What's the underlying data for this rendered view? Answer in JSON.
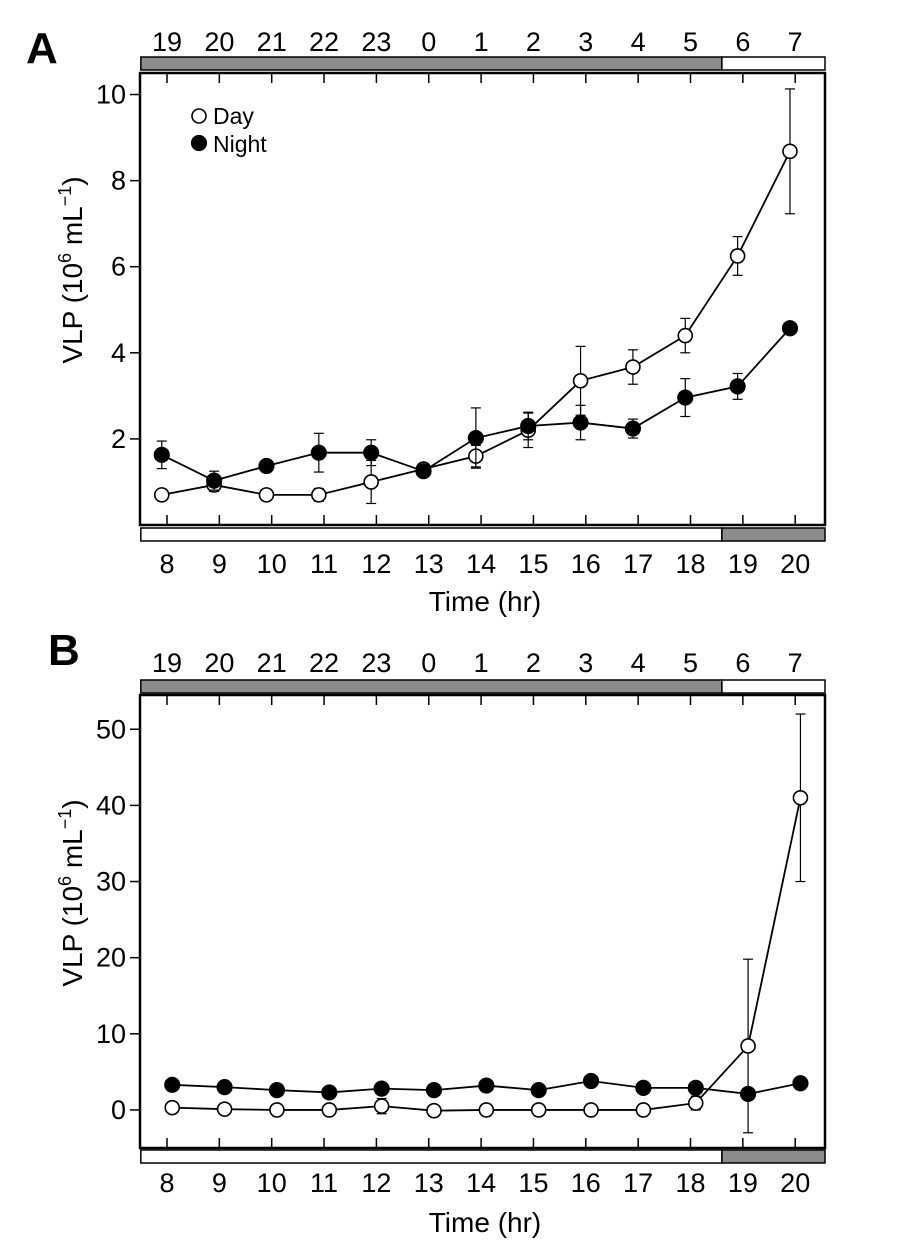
{
  "chart_data": [
    {
      "type": "line",
      "panel_label": "A",
      "xlabel": "Time (hr)",
      "ylabel_main": "VLP (10",
      "ylabel_sup1": "6",
      "ylabel_mid": " mL",
      "ylabel_sup2": "−1",
      "ylabel_end": ")",
      "x_ticks": [
        "8",
        "9",
        "10",
        "11",
        "12",
        "13",
        "14",
        "15",
        "16",
        "17",
        "18",
        "19",
        "20"
      ],
      "top_ticks": [
        "19",
        "20",
        "21",
        "22",
        "23",
        "0",
        "1",
        "2",
        "3",
        "4",
        "5",
        "6",
        "7"
      ],
      "y_ticks": [
        "2",
        "4",
        "6",
        "8",
        "10"
      ],
      "y_tick_values": [
        2,
        4,
        6,
        8,
        10
      ],
      "ylim": [
        0,
        10.5
      ],
      "xlim": [
        7.5,
        20.7
      ],
      "top_bar": [
        {
          "from": 7.5,
          "to": 18.6,
          "color": "#8c8c8c"
        },
        {
          "from": 18.6,
          "to": 20.7,
          "color": "#ffffff"
        }
      ],
      "bottom_bar": [
        {
          "from": 7.5,
          "to": 18.6,
          "color": "#ffffff"
        },
        {
          "from": 18.6,
          "to": 20.7,
          "color": "#8c8c8c"
        }
      ],
      "legend": {
        "position": "top-left",
        "day_label": "Day",
        "night_label": "Night"
      },
      "series": [
        {
          "name": "Day",
          "marker": "open-circle",
          "x": [
            7.9,
            8.9,
            9.9,
            10.9,
            11.9,
            12.9,
            13.9,
            14.9,
            15.9,
            16.9,
            17.9,
            18.9,
            19.9
          ],
          "y": [
            0.7,
            0.93,
            0.7,
            0.7,
            1.0,
            1.3,
            1.6,
            2.2,
            3.35,
            3.67,
            4.4,
            6.25,
            8.68
          ],
          "err": [
            0.12,
            0.15,
            0.06,
            0.15,
            0.5,
            0.1,
            0.25,
            0.4,
            0.8,
            0.4,
            0.4,
            0.45,
            1.45
          ]
        },
        {
          "name": "Night",
          "marker": "filled-circle",
          "x": [
            7.9,
            8.9,
            9.9,
            10.9,
            11.9,
            12.9,
            13.9,
            14.9,
            15.9,
            16.9,
            17.9,
            18.9,
            19.9
          ],
          "y": [
            1.63,
            1.03,
            1.37,
            1.68,
            1.68,
            1.25,
            2.02,
            2.3,
            2.38,
            2.24,
            2.96,
            3.22,
            4.57
          ],
          "err": [
            0.32,
            0.22,
            0.0,
            0.45,
            0.3,
            0.1,
            0.7,
            0.32,
            0.4,
            0.22,
            0.44,
            0.3,
            0.0
          ]
        }
      ]
    },
    {
      "type": "line",
      "panel_label": "B",
      "xlabel": "Time (hr)",
      "ylabel_main": "VLP (10",
      "ylabel_sup1": "6",
      "ylabel_mid": " mL",
      "ylabel_sup2": "−1",
      "ylabel_end": ")",
      "x_ticks": [
        "8",
        "9",
        "10",
        "11",
        "12",
        "13",
        "14",
        "15",
        "16",
        "17",
        "18",
        "19",
        "20"
      ],
      "top_ticks": [
        "19",
        "20",
        "21",
        "22",
        "23",
        "0",
        "1",
        "2",
        "3",
        "4",
        "5",
        "6",
        "7"
      ],
      "y_ticks": [
        "0",
        "10",
        "20",
        "30",
        "40",
        "50"
      ],
      "y_tick_values": [
        0,
        10,
        20,
        30,
        40,
        50
      ],
      "ylim": [
        -5,
        54.5
      ],
      "xlim": [
        7.5,
        20.7
      ],
      "top_bar": [
        {
          "from": 7.5,
          "to": 18.6,
          "color": "#8c8c8c"
        },
        {
          "from": 18.6,
          "to": 20.7,
          "color": "#ffffff"
        }
      ],
      "bottom_bar": [
        {
          "from": 7.5,
          "to": 18.6,
          "color": "#ffffff"
        },
        {
          "from": 18.6,
          "to": 20.7,
          "color": "#8c8c8c"
        }
      ],
      "series": [
        {
          "name": "Day",
          "marker": "open-circle",
          "x": [
            8.1,
            9.1,
            10.1,
            11.1,
            12.1,
            13.1,
            14.1,
            15.1,
            16.1,
            17.1,
            18.1,
            19.1,
            20.1
          ],
          "y": [
            0.3,
            0.1,
            0.0,
            0.0,
            0.5,
            -0.1,
            0.0,
            0.0,
            0.0,
            0.0,
            0.9,
            8.4,
            41.0
          ],
          "err": [
            0.0,
            0.0,
            0.0,
            0.0,
            1.0,
            0.0,
            0.0,
            0.0,
            0.0,
            0.0,
            0.9,
            11.4,
            11.0
          ]
        },
        {
          "name": "Night",
          "marker": "filled-circle",
          "x": [
            8.1,
            9.1,
            10.1,
            11.1,
            12.1,
            13.1,
            14.1,
            15.1,
            16.1,
            17.1,
            18.1,
            19.1,
            20.1
          ],
          "y": [
            3.3,
            3.0,
            2.6,
            2.3,
            2.8,
            2.6,
            3.2,
            2.6,
            3.8,
            2.9,
            2.9,
            2.1,
            3.5
          ],
          "err": [
            0,
            0,
            0,
            0,
            0,
            0,
            0,
            0,
            0,
            0,
            0,
            0,
            0
          ]
        }
      ]
    }
  ]
}
